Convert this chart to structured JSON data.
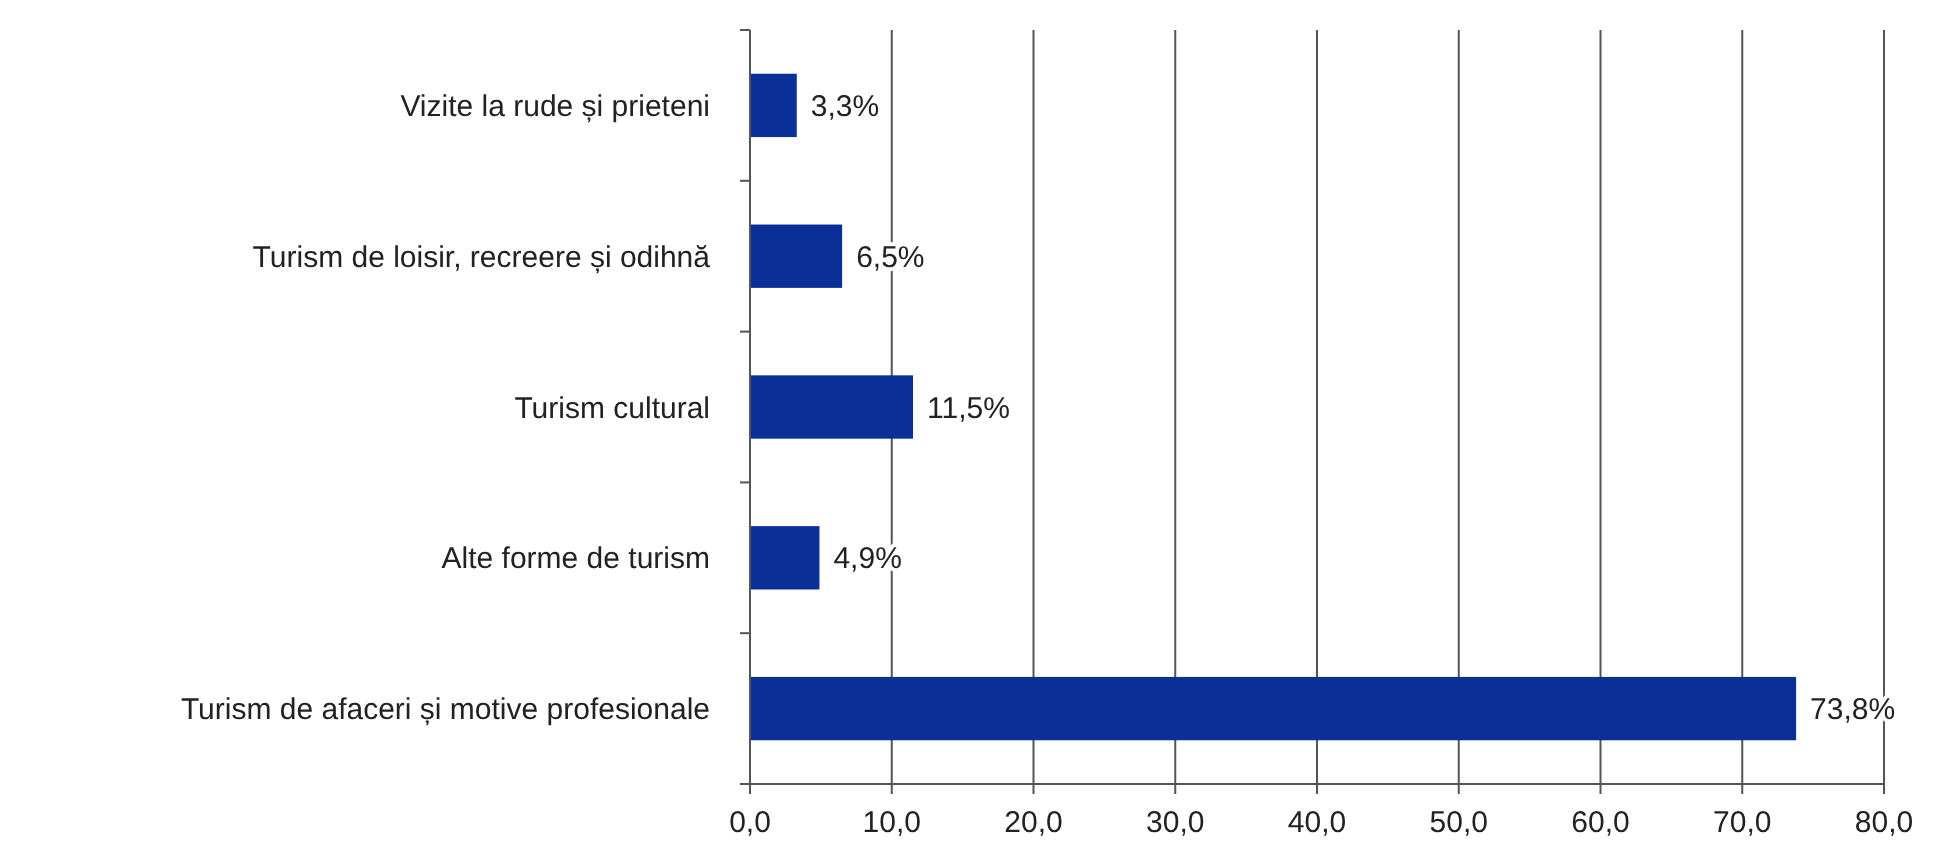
{
  "chart_data": {
    "type": "bar",
    "orientation": "horizontal",
    "categories": [
      "Vizite la rude și prieteni",
      "Turism de loisir, recreere și odihnă",
      "Turism cultural",
      "Alte forme de turism",
      "Turism de afaceri și motive profesionale"
    ],
    "values": [
      3.3,
      6.5,
      11.5,
      4.9,
      73.8
    ],
    "value_labels": [
      "3,3%",
      "6,5%",
      "11,5%",
      "4,9%",
      "73,8%"
    ],
    "color": "#0a2f96",
    "xlim": [
      0,
      80
    ],
    "xticks": [
      {
        "value": 0,
        "label": "0,0"
      },
      {
        "value": 10,
        "label": "10,0"
      },
      {
        "value": 20,
        "label": "20,0"
      },
      {
        "value": 30,
        "label": "30,0"
      },
      {
        "value": 40,
        "label": "40,0"
      },
      {
        "value": 50,
        "label": "50,0"
      },
      {
        "value": 60,
        "label": "60,0"
      },
      {
        "value": 70,
        "label": "70,0"
      },
      {
        "value": 80,
        "label": "80,0"
      }
    ],
    "grid": "x"
  }
}
